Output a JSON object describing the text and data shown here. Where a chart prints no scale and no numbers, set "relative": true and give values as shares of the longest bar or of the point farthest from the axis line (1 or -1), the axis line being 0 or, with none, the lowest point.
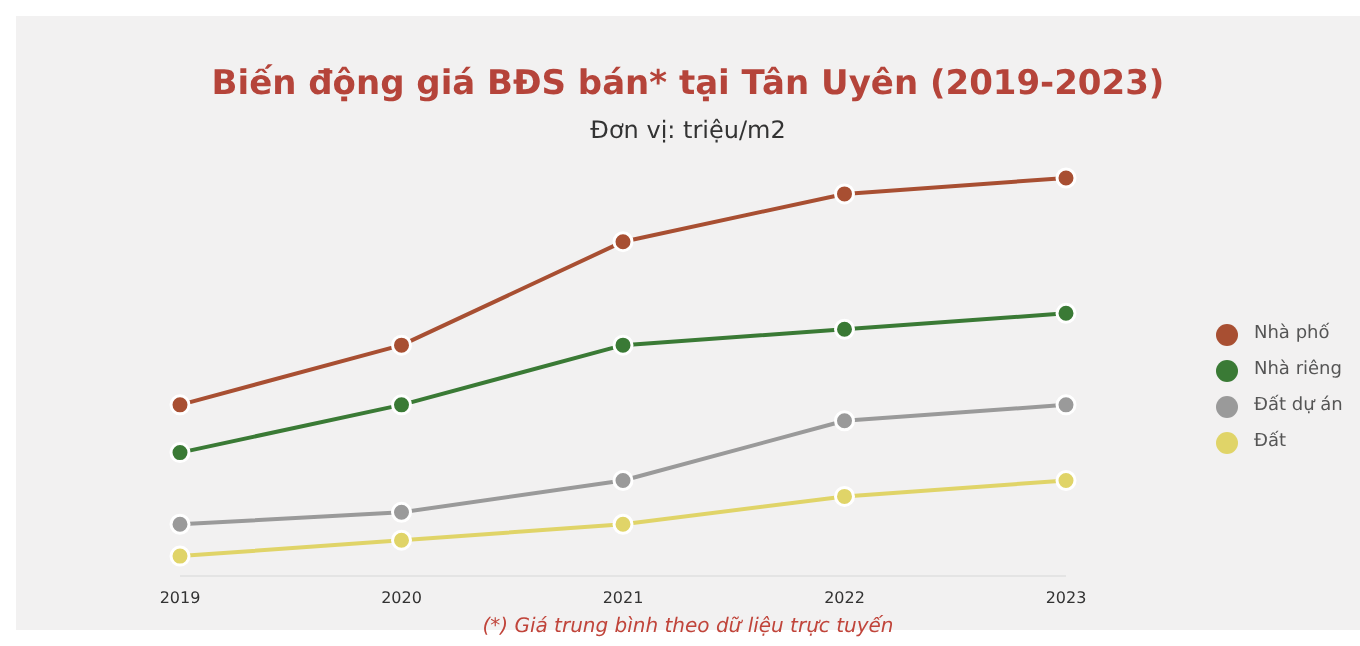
{
  "chart_data": {
    "type": "line",
    "title": "Biến động giá BĐS bán* tại Tân Uyên (2019-2023)",
    "subtitle": "Đơn vị: triệu/m2",
    "annotations": [
      "(*) Giá trung bình theo dữ liệu trực tuyến"
    ],
    "categories": [
      "2019",
      "2020",
      "2021",
      "2022",
      "2023"
    ],
    "relative": true,
    "marker": "circle",
    "legend": "right",
    "series": [
      {
        "name": "Nhà phố",
        "color": "#a84f32",
        "values": [
          0.43,
          0.58,
          0.84,
          0.96,
          1
        ]
      },
      {
        "name": "Nhà riêng",
        "color": "#3a7a35",
        "values": [
          0.31,
          0.43,
          0.58,
          0.62,
          0.66
        ]
      },
      {
        "name": "Đất dự án",
        "color": "#9a9a9a",
        "values": [
          0.13,
          0.16,
          0.24,
          0.39,
          0.43
        ]
      },
      {
        "name": "Đất",
        "color": "#e0d468",
        "values": [
          0.05,
          0.09,
          0.13,
          0.2,
          0.24
        ]
      }
    ]
  }
}
